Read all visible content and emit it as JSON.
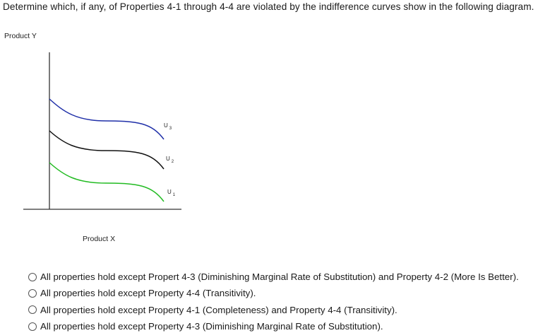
{
  "question": {
    "text": "Determine which, if any, of Properties 4-1 through 4-4 are violated by the indifference curves show in the following diagram."
  },
  "diagram": {
    "y_axis_label": "Product Y",
    "x_axis_label": "Product X",
    "axis_color": "#333333",
    "curves": [
      {
        "label_main": "U",
        "label_sub": "3",
        "color": "#1f2fa8"
      },
      {
        "label_main": "U",
        "label_sub": "2",
        "color": "#111111"
      },
      {
        "label_main": "U",
        "label_sub": "1",
        "color": "#22bb22"
      }
    ]
  },
  "answers": {
    "options": [
      {
        "label": "All properties hold except Propert 4-3 (Diminishing Marginal Rate of Substitution) and Property 4-2 (More Is Better).",
        "selected": false
      },
      {
        "label": "All properties hold except Property 4-4 (Transitivity).",
        "selected": false
      },
      {
        "label": "All properties hold except Property 4-1 (Completeness) and Property 4-4 (Transitivity).",
        "selected": false
      },
      {
        "label": "All properties hold except Property 4-3 (Diminishing Marginal Rate of Substitution).",
        "selected": false
      }
    ]
  }
}
